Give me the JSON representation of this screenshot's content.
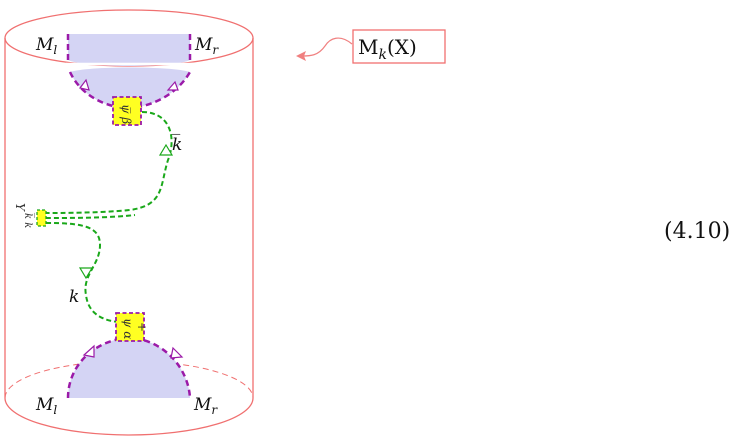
{
  "diagram": {
    "cylinder_label": "M",
    "cylinder_label_sub": "k",
    "cylinder_label_arg": "(X)",
    "top_left": {
      "base": "M",
      "sub": "l"
    },
    "top_right": {
      "base": "M",
      "sub": "r"
    },
    "bottom_left": {
      "base": "M",
      "sub": "l"
    },
    "bottom_right": {
      "base": "M",
      "sub": "r"
    },
    "top_operator": "ψ̅ β",
    "bottom_operator": "ψ α",
    "bottom_operator_sign": "+",
    "mid_operator": "Y",
    "mid_operator_sub": "k̅ k",
    "upper_momentum": "k̅",
    "lower_momentum": "k",
    "equation_number": "(4.10)",
    "colors": {
      "cylinder": "#f07070",
      "boundary": "#9b1aa8",
      "propagator": "#1aa81a",
      "disk_fill": "#d4d4f4",
      "operator_fill": "#ffff22",
      "arrow_pink": "#f08080"
    }
  }
}
